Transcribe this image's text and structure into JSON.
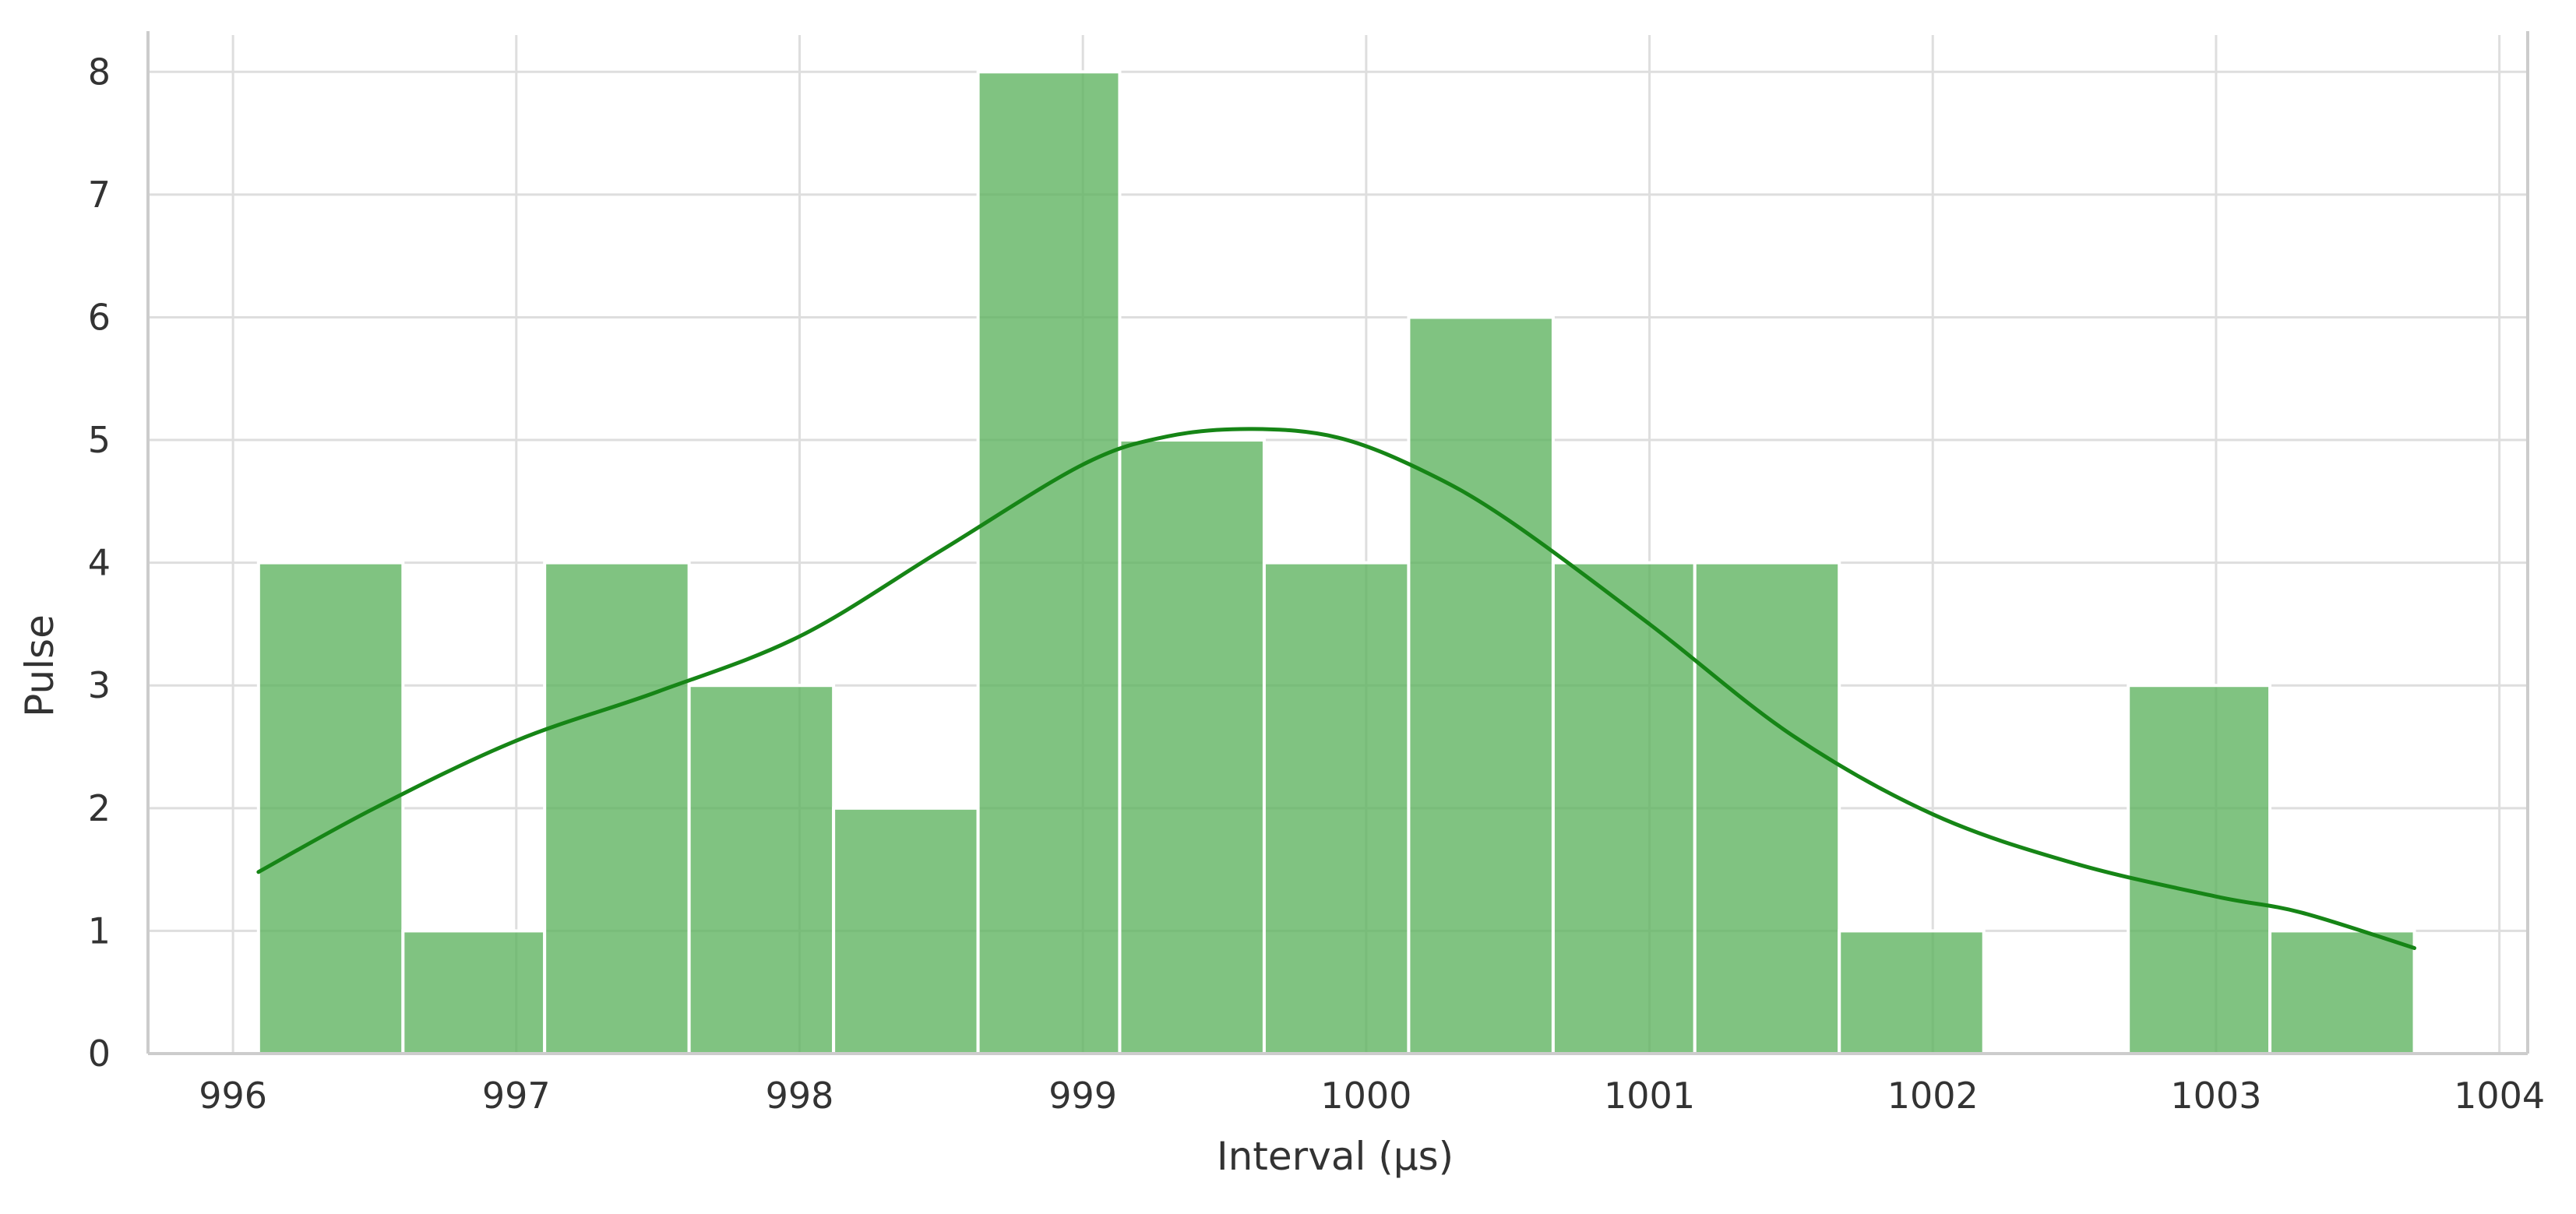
{
  "chart_data": {
    "type": "bar",
    "subtype": "histogram_with_kde",
    "title": "",
    "xlabel": "Interval (µs)",
    "ylabel": "Pulse",
    "xlim": [
      995.7,
      1004.1
    ],
    "ylim": [
      0,
      8.3
    ],
    "grid": true,
    "x_ticks": [
      996,
      997,
      998,
      999,
      1000,
      1001,
      1002,
      1003,
      1004
    ],
    "x_tick_labels": [
      "996",
      "997",
      "998",
      "999",
      "1000",
      "1001",
      "1002",
      "1003",
      "1004"
    ],
    "y_ticks": [
      0,
      1,
      2,
      3,
      4,
      5,
      6,
      7,
      8
    ],
    "y_tick_labels": [
      "0",
      "1",
      "2",
      "3",
      "4",
      "5",
      "6",
      "7",
      "8"
    ],
    "bins": [
      {
        "x0": 996.09,
        "x1": 996.6,
        "value": 4
      },
      {
        "x0": 996.6,
        "x1": 997.1,
        "value": 1
      },
      {
        "x0": 997.1,
        "x1": 997.61,
        "value": 4
      },
      {
        "x0": 997.61,
        "x1": 998.12,
        "value": 3
      },
      {
        "x0": 998.12,
        "x1": 998.63,
        "value": 2
      },
      {
        "x0": 998.63,
        "x1": 999.13,
        "value": 8
      },
      {
        "x0": 999.13,
        "x1": 999.64,
        "value": 5
      },
      {
        "x0": 999.64,
        "x1": 1000.15,
        "value": 4
      },
      {
        "x0": 1000.15,
        "x1": 1000.66,
        "value": 6
      },
      {
        "x0": 1000.66,
        "x1": 1001.16,
        "value": 4
      },
      {
        "x0": 1001.16,
        "x1": 1001.67,
        "value": 4
      },
      {
        "x0": 1001.67,
        "x1": 1002.18,
        "value": 1
      },
      {
        "x0": 1002.18,
        "x1": 1002.69,
        "value": 0
      },
      {
        "x0": 1002.69,
        "x1": 1003.19,
        "value": 3
      },
      {
        "x0": 1003.19,
        "x1": 1003.7,
        "value": 1
      }
    ],
    "kde": {
      "x": [
        996.09,
        996.5,
        997.0,
        997.5,
        998.0,
        998.5,
        999.0,
        999.3,
        999.6,
        999.9,
        1000.2,
        1000.5,
        1001.0,
        1001.5,
        1002.0,
        1002.5,
        1003.0,
        1003.3,
        1003.7
      ],
      "y": [
        1.48,
        2.0,
        2.55,
        2.95,
        3.4,
        4.1,
        4.8,
        5.03,
        5.09,
        5.02,
        4.75,
        4.35,
        3.5,
        2.6,
        1.95,
        1.55,
        1.28,
        1.15,
        0.86
      ]
    },
    "colors": {
      "bar_fill": "#5cb25d",
      "bar_opacity": 0.78,
      "bar_edge": "#ffffff",
      "kde_line": "#168516",
      "grid": "#dedede",
      "axis": "#cccccc",
      "text": "#333333"
    }
  }
}
